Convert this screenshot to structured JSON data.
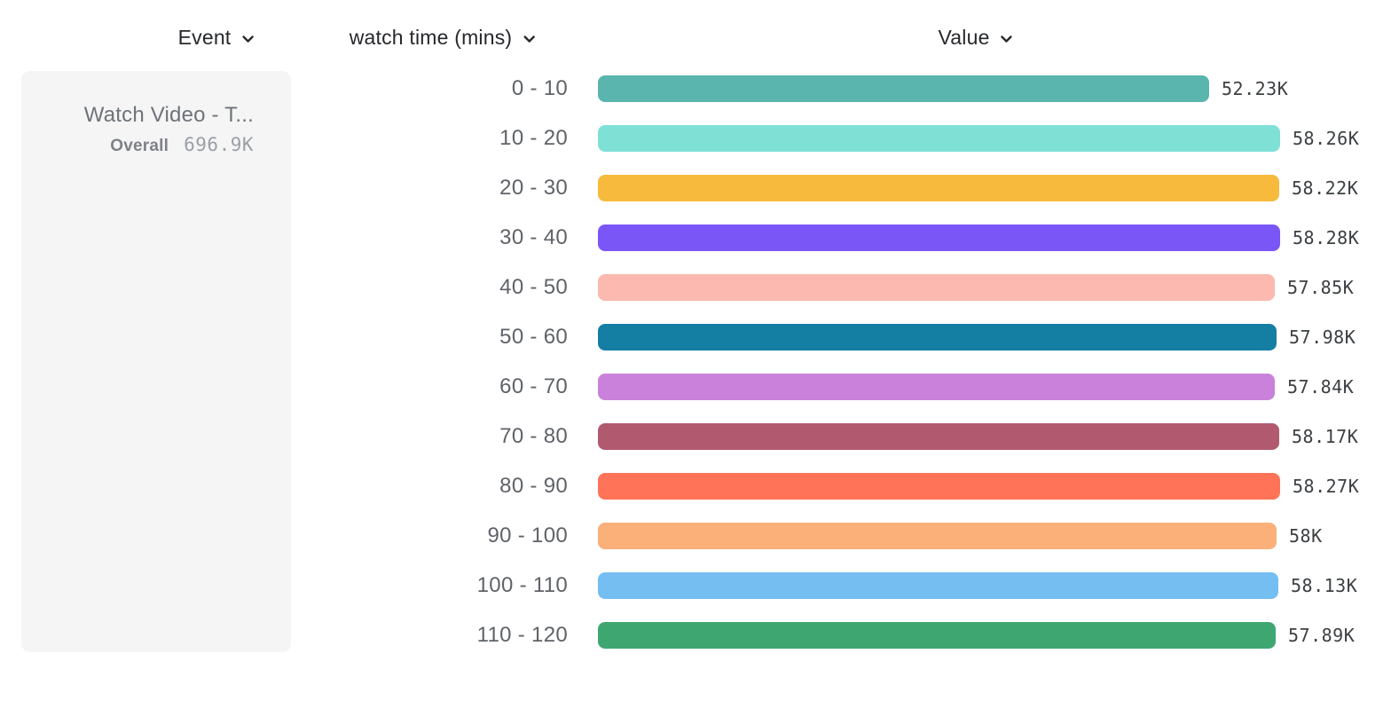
{
  "header": {
    "columns": [
      {
        "id": "event",
        "label": "Event"
      },
      {
        "id": "breakdown",
        "label": "watch time (mins)"
      },
      {
        "id": "value",
        "label": "Value"
      }
    ]
  },
  "event_card": {
    "title": "Watch Video - T...",
    "overall_label": "Overall",
    "overall_value": "696.9K"
  },
  "chart_data": {
    "type": "bar",
    "orientation": "horizontal",
    "title": "",
    "xlabel": "",
    "ylabel": "watch time (mins)",
    "grid": false,
    "legend_position": "none",
    "categories": [
      "0 - 10",
      "10 - 20",
      "20 - 30",
      "30 - 40",
      "40 - 50",
      "50 - 60",
      "60 - 70",
      "70 - 80",
      "80 - 90",
      "90 - 100",
      "100 - 110",
      "110 - 120"
    ],
    "values": [
      52230,
      58260,
      58220,
      58280,
      57850,
      57980,
      57840,
      58170,
      58270,
      58000,
      58130,
      57890
    ],
    "value_labels": [
      "52.23K",
      "58.26K",
      "58.22K",
      "58.28K",
      "57.85K",
      "57.98K",
      "57.84K",
      "58.17K",
      "58.27K",
      "58K",
      "58.13K",
      "57.89K"
    ],
    "colors": [
      "#59b5ae",
      "#7fe0d6",
      "#f7ba3c",
      "#7a56f7",
      "#fbb9af",
      "#147ea3",
      "#c981db",
      "#b15a6f",
      "#ff7458",
      "#fbaf79",
      "#74bef2",
      "#3ea771"
    ],
    "xlim": [
      0,
      58280
    ],
    "overall_label": "Overall",
    "overall_value": "696.9K"
  },
  "icons": {
    "chevron_down": "chevron-down"
  },
  "accent_colors": {
    "header_text": "#26282c",
    "row_label_text": "#5f6368",
    "value_text": "#3c4043",
    "card_background": "#f5f5f6"
  }
}
